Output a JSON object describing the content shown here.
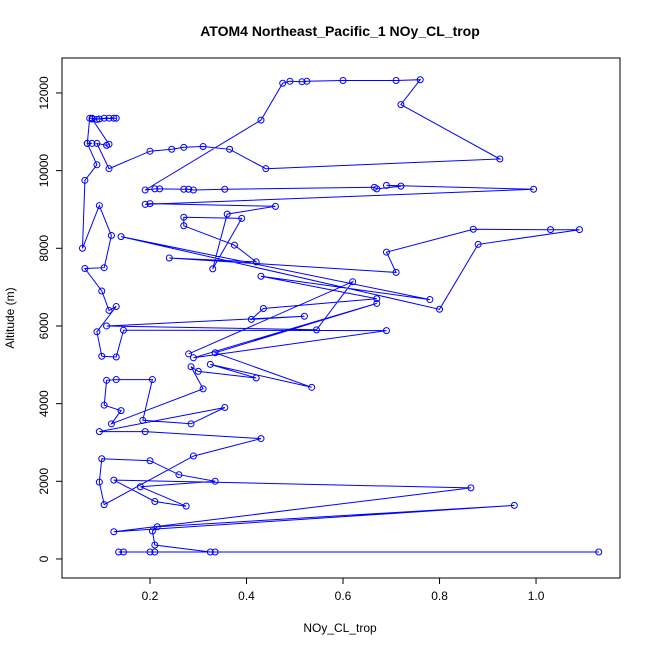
{
  "chart_data": {
    "type": "line",
    "title": "ATOM4 Northeast_Pacific_1 NOy_CL_trop",
    "xlabel": "NOy_CL_trop",
    "ylabel": "Altitude (m)",
    "color": "#0000ff",
    "xlim": [
      0.0176,
      1.174
    ],
    "ylim": [
      -490,
      12900
    ],
    "xticks": [
      0.2,
      0.4,
      0.6,
      0.8,
      {
        "value": 1,
        "label": "1.0"
      }
    ],
    "yticks": [
      0,
      2000,
      4000,
      6000,
      8000,
      10000,
      12000
    ],
    "x": [
      0.135,
      0.145,
      1.13,
      0.21,
      0.2,
      0.335,
      0.325,
      0.21,
      0.205,
      0.215,
      0.955,
      0.125,
      0.865,
      0.125,
      0.21,
      0.275,
      0.18,
      0.335,
      0.26,
      0.2,
      0.1,
      0.095,
      0.105,
      0.29,
      0.43,
      0.19,
      0.095,
      0.355,
      0.285,
      0.185,
      0.205,
      0.13,
      0.11,
      0.105,
      0.14,
      0.12,
      0.31,
      0.285,
      0.3,
      0.42,
      0.325,
      0.535,
      0.335,
      0.67,
      0.29,
      0.69,
      0.145,
      0.13,
      0.1,
      0.09,
      0.13,
      0.115,
      0.1,
      0.065,
      0.105,
      0.12,
      0.095,
      0.06,
      0.065,
      0.09,
      0.07,
      0.08,
      0.07,
      0.075,
      0.08,
      0.09,
      0.095,
      0.105,
      0.115,
      0.125,
      0.13,
      0.08,
      0.115,
      0.11,
      0.09,
      0.115,
      0.2,
      0.245,
      0.27,
      0.31,
      0.365,
      0.44,
      0.925,
      0.72,
      0.76,
      0.71,
      0.6,
      0.525,
      0.515,
      0.49,
      0.475,
      0.43,
      0.19,
      0.21,
      0.22,
      0.27,
      0.28,
      0.29,
      0.355,
      0.665,
      0.67,
      0.72,
      0.69,
      0.995,
      0.19,
      0.2,
      0.46,
      0.36,
      0.33,
      0.39,
      0.27,
      0.27,
      0.375,
      0.42,
      0.24,
      0.71,
      0.69,
      0.87,
      1.03,
      1.09,
      0.88,
      0.8,
      0.14,
      0.78,
      0.43,
      0.67,
      0.435,
      0.41,
      0.52,
      0.11,
      0.545,
      0.62,
      0.28
    ],
    "series": [
      {
        "name": "NOy_CL_trop",
        "color": "#0000ff",
        "values": [
          180,
          180,
          180,
          180,
          180,
          180,
          180,
          360,
          720,
          830,
          1380,
          700,
          1830,
          2030,
          1480,
          1360,
          1860,
          2000,
          2170,
          2530,
          2580,
          1980,
          1400,
          2650,
          3100,
          3280,
          3280,
          3900,
          3480,
          3570,
          4620,
          4620,
          4600,
          3960,
          3820,
          3480,
          4380,
          4950,
          4830,
          4660,
          5010,
          4420,
          5310,
          6580,
          5180,
          5880,
          5890,
          5200,
          5220,
          5850,
          6500,
          6400,
          6900,
          7480,
          7500,
          8330,
          9100,
          8000,
          9750,
          10150,
          10700,
          10700,
          10700,
          11350,
          11350,
          11320,
          11330,
          11350,
          11350,
          11350,
          11350,
          11330,
          10680,
          10650,
          10700,
          10050,
          10500,
          10550,
          10600,
          10620,
          10550,
          10050,
          10300,
          11700,
          12340,
          12320,
          12320,
          12300,
          12290,
          12300,
          12250,
          11300,
          9500,
          9530,
          9530,
          9520,
          9520,
          9500,
          9520,
          9570,
          9530,
          9600,
          9620,
          9520,
          9130,
          9150,
          9080,
          8880,
          7470,
          8770,
          8800,
          8580,
          8080,
          7650,
          7750,
          7380,
          7900,
          8490,
          8480,
          8480,
          8100,
          6430,
          8300,
          6680,
          7280,
          6700,
          6450,
          6170,
          6250,
          6000,
          5900,
          7140,
          5280
        ]
      }
    ]
  }
}
